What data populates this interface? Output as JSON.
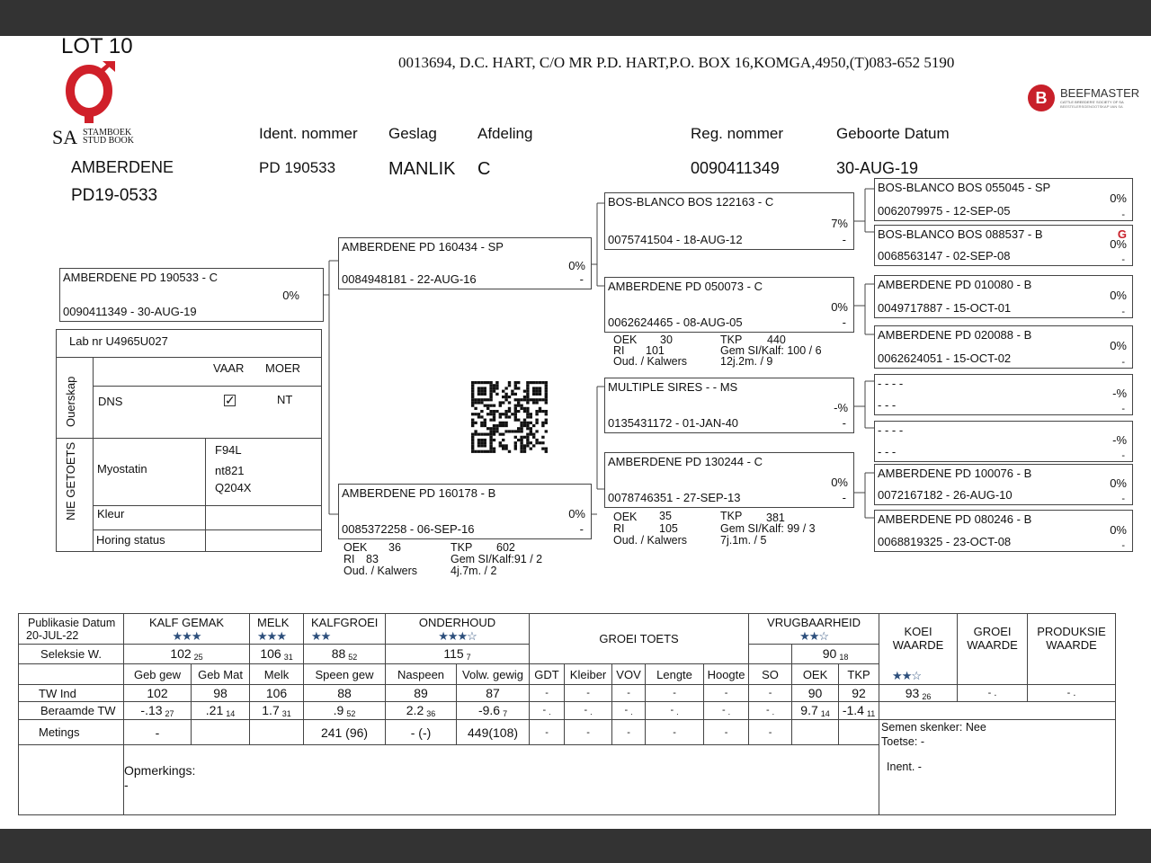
{
  "lot": "LOT 10",
  "address": "0013694, D.C. HART, C/O MR P.D. HART,P.O. BOX 16,KOMGA,4950,(T)083-652 5190",
  "logos": {
    "sa": {
      "big": "SA",
      "line1": "STAMBOEK",
      "line2": "STUD BOOK"
    },
    "beefmaster": {
      "letter": "B",
      "name": "BEEFMASTER",
      "sub1": "CATTLE BREEDERS' SOCIETY OF SA",
      "sub2": "BEESTELERSGENOOTSKAP VAN SA"
    },
    "accent": "#d0202a"
  },
  "header": {
    "name": "AMBERDENE",
    "herd_id": "PD19-0533",
    "ident_label": "Ident. nommer",
    "ident": "PD  190533",
    "sex_label": "Geslag",
    "sex": "MANLIK",
    "section_label": "Afdeling",
    "section": "C",
    "reg_label": "Reg. nommer",
    "reg": "0090411349",
    "dob_label": "Geboorte Datum",
    "dob": "30-AUG-19"
  },
  "pedigree": [
    {
      "name": "AMBERDENE PD  190533 - C",
      "id_date": "0090411349 -  30-AUG-19",
      "pct": "0%",
      "extra": ""
    },
    {
      "name": "AMBERDENE PD  160434 - SP",
      "id_date": "0084948181 - 22-AUG-16",
      "pct": "0%",
      "extra": "-"
    },
    {
      "name": "AMBERDENE PD  160178 - B",
      "id_date": "0085372258 - 06-SEP-16",
      "pct": "0%",
      "extra": "-"
    },
    {
      "name": "BOS-BLANCO BOS 122163 - C",
      "id_date": "0075741504 - 18-AUG-12",
      "pct": "7%",
      "extra": "-"
    },
    {
      "name": "AMBERDENE PD  050073 - C",
      "id_date": "0062624465 - 08-AUG-05",
      "pct": "0%",
      "extra": "-"
    },
    {
      "name": "MULTIPLE SIRES - - MS",
      "id_date": "0135431172 - 01-JAN-40",
      "pct": "-%",
      "extra": "-"
    },
    {
      "name": "AMBERDENE PD  130244 - C",
      "id_date": "0078746351 - 27-SEP-13",
      "pct": "0%",
      "extra": "-"
    },
    {
      "name": "BOS-BLANCO BOS 055045 - SP",
      "id_date": "0062079975 - 12-SEP-05",
      "pct": "0%",
      "extra": "-"
    },
    {
      "name": "BOS-BLANCO BOS 088537 - B",
      "id_date": "0068563147 - 02-SEP-08",
      "pct": "0%",
      "extra": "-"
    },
    {
      "name": "AMBERDENE PD  010080 - B",
      "id_date": "0049717887 - 15-OCT-01",
      "pct": "0%",
      "extra": "-"
    },
    {
      "name": "AMBERDENE PD  020088 - B",
      "id_date": "0062624051 - 15-OCT-02",
      "pct": "0%",
      "extra": "-"
    },
    {
      "name": "- - - -",
      "id_date": "- - -",
      "pct": "-%",
      "extra": "-"
    },
    {
      "name": "- - - -",
      "id_date": "- - -",
      "pct": "-%",
      "extra": "-"
    },
    {
      "name": "AMBERDENE PD  100076 - B",
      "id_date": "0072167182 - 26-AUG-10",
      "pct": "0%",
      "extra": "-"
    },
    {
      "name": "AMBERDENE PD  080246 - B",
      "id_date": "0068819325 - 23-OCT-08",
      "pct": "0%",
      "extra": "-"
    }
  ],
  "dam_stats": [
    {
      "oek_label": "OEK",
      "oek": "30",
      "ri_label": "RI",
      "ri": "101",
      "oud_label": "Oud. / Kalwers",
      "tkp_label": "TKP",
      "tkp": "440",
      "gem": "Gem SI/Kalf:  100 / 6",
      "age": "12j.2m. / 9"
    },
    {
      "oek_label": "OEK",
      "oek": "36",
      "ri_label": "RI",
      "ri": "83",
      "oud_label": "Oud. / Kalwers",
      "tkp_label": "TKP",
      "tkp": "602",
      "gem": "Gem SI/Kalf:91 / 2",
      "age": "4j.7m. / 2"
    },
    {
      "oek_label": "OEK",
      "oek": "35",
      "ri_label": "RI",
      "ri": "105",
      "oud_label": "Oud. / Kalwers",
      "tkp_label": "TKP",
      "tkp": "381",
      "gem": "Gem SI/Kalf:   99 / 3",
      "age": "7j.1m. / 5"
    }
  ],
  "lab": {
    "lab_nr": "Lab nr  U4965U027",
    "ouerskap": "Ouerskap",
    "vaar": "VAAR",
    "moer": "MOER",
    "dns": "DNS",
    "vaar_checked": true,
    "moer_value": "NT",
    "nie_getoets": "NIE GETOETS",
    "myostatin": "Myostatin",
    "myo_values": [
      "F94L",
      "nt821",
      "Q204X"
    ],
    "kleur": "Kleur",
    "horing": "Horing status"
  },
  "table": {
    "pub_label": "Publikasie Datum",
    "pub_date": "20-JUL-22",
    "seleksie_label": "Seleksie W.",
    "groups": {
      "kalf_gemak": "KALF GEMAK",
      "melk": "MELK",
      "kalfgroei": "KALFGROEI",
      "onderhoud": "ONDERHOUD",
      "groei_toets": "GROEI TOETS",
      "vrugbaarheid": "VRUGBAARHEID",
      "koei": "KOEI WAARDE",
      "groei": "GROEI WAARDE",
      "produksie": "PRODUKSIE WAARDE"
    },
    "stars": {
      "kalf_gemak": "★★★",
      "melk": "★★★",
      "kalfgroei": "★★",
      "onderhoud": "★★★☆",
      "vrugbaarheid": "★★☆",
      "koei": "★★☆"
    },
    "seleksie": {
      "kalf_gemak": {
        "v": "102",
        "s": "25"
      },
      "melk": {
        "v": "106",
        "s": "31"
      },
      "kalfgroei": {
        "v": "88",
        "s": "52"
      },
      "onderhoud": {
        "v": "115",
        "s": "7"
      },
      "vrugbaarheid": {
        "v": "90",
        "s": "18"
      }
    },
    "columns": [
      "Geb gew",
      "Geb Mat",
      "Melk",
      "Speen gew",
      "Naspeen",
      "Volw. gewig",
      "GDT",
      "Kleiber",
      "VOV",
      "Lengte",
      "Hoogte",
      "SO",
      "OEK",
      "TKP"
    ],
    "tw_label": "TW Ind",
    "tw": [
      "102",
      "98",
      "106",
      "88",
      "89",
      "87",
      "-",
      "-",
      "-",
      "-",
      "-",
      "-",
      "90",
      "92"
    ],
    "koei_tw": {
      "v": "93",
      "s": "26"
    },
    "groei_tw": "-  .",
    "produksie_tw": "-  .",
    "beraamde_label": "Beraamde TW",
    "beraamde": [
      {
        "v": "-.13",
        "s": "27"
      },
      {
        "v": ".21",
        "s": "14"
      },
      {
        "v": "1.7",
        "s": "31"
      },
      {
        "v": ".9",
        "s": "52"
      },
      {
        "v": "2.2",
        "s": "36"
      },
      {
        "v": "-9.6",
        "s": "7"
      },
      {
        "v": "-",
        "s": "."
      },
      {
        "v": "-",
        "s": "."
      },
      {
        "v": "-",
        "s": "."
      },
      {
        "v": "-",
        "s": "."
      },
      {
        "v": "-",
        "s": "."
      },
      {
        "v": "-",
        "s": "."
      },
      {
        "v": "9.7",
        "s": "14"
      },
      {
        "v": "-1.4",
        "s": "11"
      }
    ],
    "metings_label": "Metings",
    "metings": [
      "-",
      "",
      "",
      "241  (96)",
      "-  (-)",
      "449(108)",
      "-",
      "-",
      "-",
      "-",
      "-",
      "-",
      "",
      ""
    ],
    "semen": "Semen skenker: Nee",
    "toetse": "Toetse: -",
    "inent": "Inent. -",
    "opmerkings_label": "Opmerkings:",
    "opmerkings": "-"
  }
}
